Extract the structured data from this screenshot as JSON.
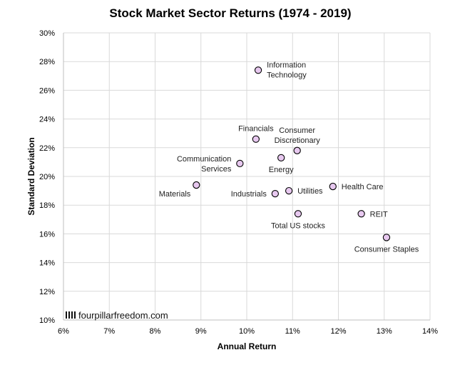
{
  "chart_data": {
    "type": "scatter",
    "title": "Stock Market Sector Returns (1974 - 2019)",
    "xlabel": "Annual Return",
    "ylabel": "Standard Deviation",
    "xlim": [
      6,
      14
    ],
    "ylim": [
      10,
      30
    ],
    "x_ticks": [
      6,
      7,
      8,
      9,
      10,
      11,
      12,
      13,
      14
    ],
    "y_ticks": [
      10,
      12,
      14,
      16,
      18,
      20,
      22,
      24,
      26,
      28,
      30
    ],
    "x_tick_labels": [
      "6%",
      "7%",
      "8%",
      "9%",
      "10%",
      "11%",
      "12%",
      "13%",
      "14%"
    ],
    "y_tick_labels": [
      "10%",
      "12%",
      "14%",
      "16%",
      "18%",
      "20%",
      "22%",
      "24%",
      "26%",
      "28%",
      "30%"
    ],
    "grid": true,
    "marker_color": "#e7c8ef",
    "points": [
      {
        "label": "Information Technology",
        "lines": [
          "Information",
          "Technology"
        ],
        "x": 10.25,
        "y": 27.4,
        "pos": "right"
      },
      {
        "label": "Financials",
        "lines": [
          "Financials"
        ],
        "x": 10.2,
        "y": 22.6,
        "pos": "above"
      },
      {
        "label": "Consumer Discretionary",
        "lines": [
          "Consumer",
          "Discretionary"
        ],
        "x": 11.1,
        "y": 21.8,
        "pos": "above"
      },
      {
        "label": "Energy",
        "lines": [
          "Energy"
        ],
        "x": 10.75,
        "y": 21.3,
        "pos": "below"
      },
      {
        "label": "Communication Services",
        "lines": [
          "Communication",
          "Services"
        ],
        "x": 9.85,
        "y": 20.9,
        "pos": "left"
      },
      {
        "label": "Materials",
        "lines": [
          "Materials"
        ],
        "x": 8.9,
        "y": 19.4,
        "pos": "below-left"
      },
      {
        "label": "Industrials",
        "lines": [
          "Industrials"
        ],
        "x": 10.62,
        "y": 18.8,
        "pos": "left"
      },
      {
        "label": "Utilities",
        "lines": [
          "Utilities"
        ],
        "x": 10.92,
        "y": 19.0,
        "pos": "right"
      },
      {
        "label": "Health Care",
        "lines": [
          "Health Care"
        ],
        "x": 11.88,
        "y": 19.3,
        "pos": "right"
      },
      {
        "label": "Total US stocks",
        "lines": [
          "Total US stocks"
        ],
        "x": 11.12,
        "y": 17.4,
        "pos": "below"
      },
      {
        "label": "REIT",
        "lines": [
          "REIT"
        ],
        "x": 12.5,
        "y": 17.4,
        "pos": "right"
      },
      {
        "label": "Consumer Staples",
        "lines": [
          "Consumer Staples"
        ],
        "x": 13.05,
        "y": 15.75,
        "pos": "below"
      }
    ]
  },
  "watermark": {
    "text": "fourpillarfreedom.com",
    "icon": "four-pillars-icon"
  }
}
